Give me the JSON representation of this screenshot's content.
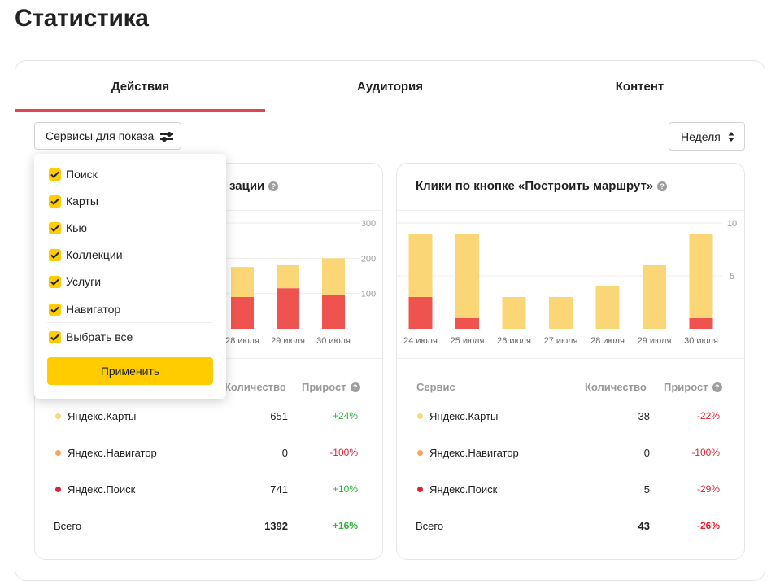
{
  "page": {
    "title": "Статистика"
  },
  "tabs": [
    {
      "label": "Действия",
      "active": true
    },
    {
      "label": "Аудитория",
      "active": false
    },
    {
      "label": "Контент",
      "active": false
    }
  ],
  "filter": {
    "label": "Сервисы для показа",
    "icon": "sliders-icon"
  },
  "period": {
    "label": "Неделя",
    "icon": "sort-arrows-icon"
  },
  "dropdown": {
    "options": [
      "Поиск",
      "Карты",
      "Кью",
      "Коллекции",
      "Услуги",
      "Навигатор"
    ],
    "select_all": "Выбрать все",
    "apply": "Применить"
  },
  "colors": {
    "accent": "#e0464f",
    "yellow": "#fad676",
    "red": "#ef5350",
    "checkbox": "#ffcc00",
    "orange": "#f6a35e"
  },
  "left_card": {
    "title_visible": "зации",
    "table": {
      "header_qty": "Количество",
      "header_growth": "Прирост",
      "rows": [
        {
          "service": "Яндекс.Карты",
          "qty": "651",
          "growth": "+24%",
          "color": "#fad676",
          "trend": "pos"
        },
        {
          "service": "Яндекс.Навигатор",
          "qty": "0",
          "growth": "-100%",
          "color": "#f6a35e",
          "trend": "neg"
        },
        {
          "service": "Яндекс.Поиск",
          "qty": "741",
          "growth": "+10%",
          "color": "#e0202f",
          "trend": "pos"
        }
      ],
      "total": {
        "label": "Всего",
        "qty": "1392",
        "growth": "+16%",
        "trend": "pos"
      }
    }
  },
  "right_card": {
    "title": "Клики по кнопке «Построить маршрут»",
    "table": {
      "header_service": "Сервис",
      "header_qty": "Количество",
      "header_growth": "Прирост",
      "rows": [
        {
          "service": "Яндекс.Карты",
          "qty": "38",
          "growth": "-22%",
          "color": "#fad676",
          "trend": "neg"
        },
        {
          "service": "Яндекс.Навигатор",
          "qty": "0",
          "growth": "-100%",
          "color": "#f6a35e",
          "trend": "neg"
        },
        {
          "service": "Яндекс.Поиск",
          "qty": "5",
          "growth": "-29%",
          "color": "#e0202f",
          "trend": "neg"
        }
      ],
      "total": {
        "label": "Всего",
        "qty": "43",
        "growth": "-26%",
        "trend": "neg"
      }
    }
  },
  "chart_data": [
    {
      "type": "bar",
      "stacked": true,
      "title": "",
      "categories": [
        "28 июля",
        "29 июля",
        "30 июля"
      ],
      "series": [
        {
          "name": "Яндекс.Поиск",
          "values": [
            90,
            115,
            95
          ]
        },
        {
          "name": "Яндекс.Карты",
          "values": [
            85,
            65,
            105
          ]
        }
      ],
      "ylim": [
        0,
        330
      ],
      "yticks": [
        100,
        200,
        300
      ]
    },
    {
      "type": "bar",
      "stacked": true,
      "title": "Клики по кнопке «Построить маршрут»",
      "categories": [
        "24 июля",
        "25 июля",
        "26 июля",
        "27 июля",
        "28 июля",
        "29 июля",
        "30 июля"
      ],
      "series": [
        {
          "name": "Яндекс.Поиск",
          "values": [
            3,
            1,
            0,
            0,
            0,
            0,
            1
          ]
        },
        {
          "name": "Яндекс.Карты",
          "values": [
            6,
            8,
            3,
            3,
            4,
            6,
            8
          ]
        }
      ],
      "ylim": [
        0,
        11
      ],
      "yticks": [
        5,
        10
      ]
    }
  ]
}
